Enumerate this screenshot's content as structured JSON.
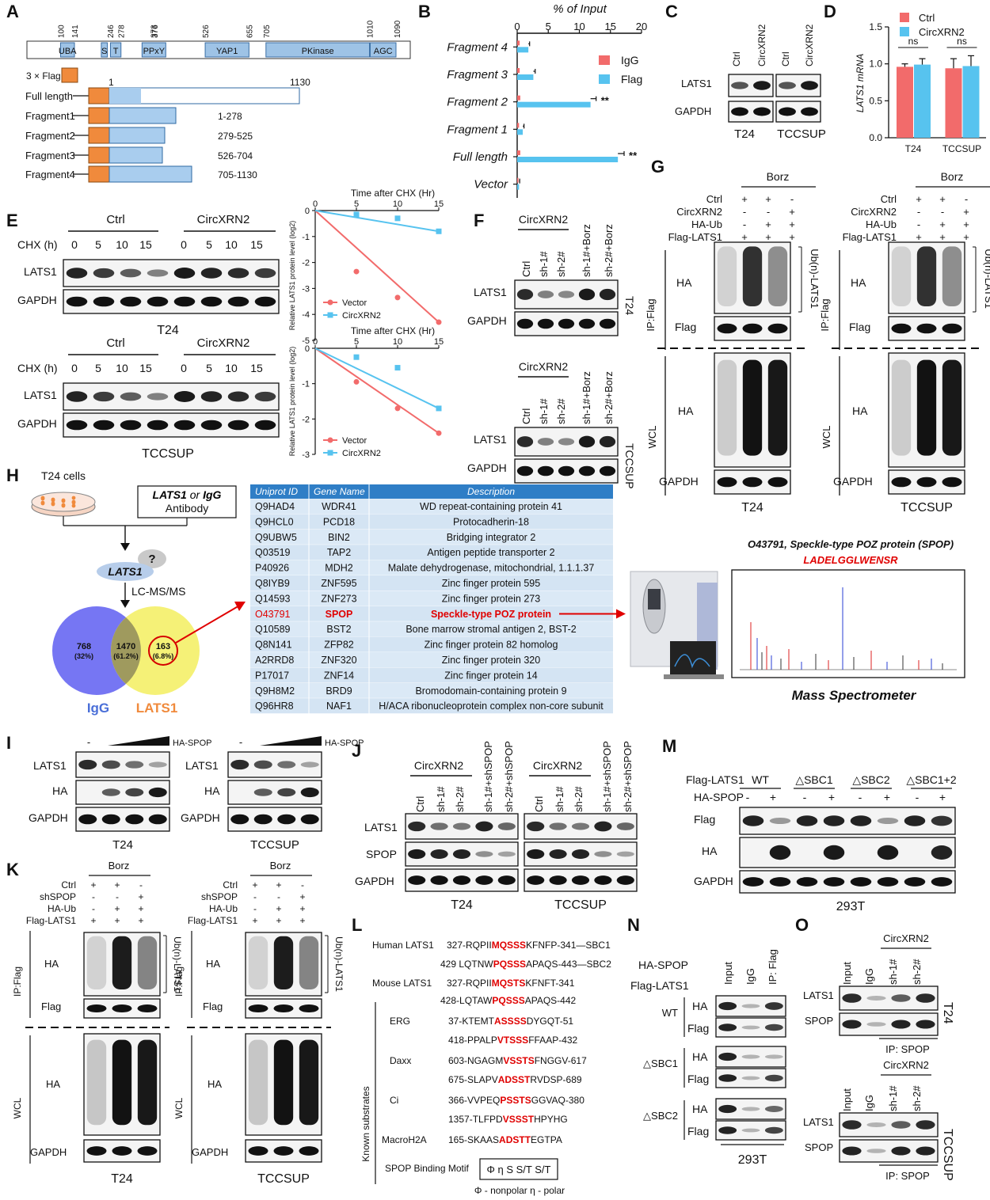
{
  "panels": {
    "A": {
      "label": "A",
      "positions": [
        "100",
        "141",
        "246",
        "278",
        "373",
        "376",
        "526",
        "655",
        "705",
        "1010",
        "1090"
      ],
      "domains": [
        "UBA",
        "S",
        "T",
        "PPxY",
        "YAP1",
        "PKinase",
        "AGC"
      ],
      "flag": "3 × Flag",
      "start": "1",
      "end": "1130",
      "constructs": [
        {
          "name": "Full length",
          "range": ""
        },
        {
          "name": "Fragment1",
          "range": "1-278"
        },
        {
          "name": "Fragment2",
          "range": "279-525"
        },
        {
          "name": "Fragment3",
          "range": "526-704"
        },
        {
          "name": "Fragment4",
          "range": "705-1130"
        }
      ]
    },
    "B": {
      "label": "B",
      "sig": "**"
    },
    "C": {
      "label": "C",
      "lanes": [
        "Ctrl",
        "CircXRN2",
        "Ctrl",
        "CircXRN2"
      ],
      "rows": [
        "LATS1",
        "GAPDH"
      ],
      "cells": [
        "T24",
        "TCCSUP"
      ]
    },
    "D": {
      "label": "D"
    },
    "E": {
      "label": "E",
      "ctrl": "Ctrl",
      "circ": "CircXRN2",
      "chx": "CHX (h)",
      "times": [
        "0",
        "5",
        "10",
        "15",
        "0",
        "5",
        "10",
        "15"
      ],
      "rows": [
        "LATS1",
        "GAPDH"
      ],
      "cells": [
        "T24",
        "TCCSUP"
      ]
    },
    "F": {
      "label": "F",
      "group": "CircXRN2",
      "lanes": [
        "Ctrl",
        "sh-1#",
        "sh-2#",
        "sh-1#+Borz",
        "sh-2#+Borz"
      ],
      "rows": [
        "LATS1",
        "GAPDH"
      ],
      "cells": [
        "T24",
        "TCCSUP"
      ]
    },
    "G": {
      "label": "G",
      "borz": "Borz",
      "conds": [
        "Ctrl",
        "CircXRN2",
        "HA-Ub",
        "Flag-LATS1"
      ],
      "signs": [
        [
          "+",
          "+",
          "-"
        ],
        [
          "-",
          "-",
          "+"
        ],
        [
          "-",
          "+",
          "+"
        ],
        [
          "+",
          "+",
          "+"
        ]
      ],
      "ip": "IP:Flag",
      "wcl": "WCL",
      "ub": "Ub(n)-LATS1",
      "rows": [
        "HA",
        "Flag",
        "HA",
        "GAPDH"
      ],
      "cells": [
        "T24",
        "TCCSUP"
      ]
    },
    "H": {
      "label": "H",
      "cells": "T24 cells",
      "antibody_1": "LATS1",
      "antibody_or": " or ",
      "antibody_2": "IgG",
      "antibody_3": "Antibody",
      "q": "?",
      "lats1": "LATS1",
      "lcms": "LC-MS/MS",
      "venn": {
        "left": "768",
        "left_pct": "(32%)",
        "mid": "1470",
        "mid_pct": "(61.2%)",
        "right": "163",
        "right_pct": "(6.8%)",
        "igg": "IgG",
        "lats": "LATS1"
      },
      "table_headers": [
        "Uniprot ID",
        "Gene Name",
        "Description"
      ],
      "table_rows": [
        [
          "Q9HAD4",
          "WDR41",
          "WD repeat-containing protein 41"
        ],
        [
          "Q9HCL0",
          "PCD18",
          "Protocadherin-18"
        ],
        [
          "Q9UBW5",
          "BIN2",
          "Bridging integrator 2"
        ],
        [
          "Q03519",
          "TAP2",
          "Antigen peptide transporter 2"
        ],
        [
          "P40926",
          "MDH2",
          "Malate dehydrogenase, mitochondrial, 1.1.1.37"
        ],
        [
          "Q8IYB9",
          "ZNF595",
          "Zinc finger protein 595"
        ],
        [
          "Q14593",
          "ZNF273",
          "Zinc finger protein 273"
        ],
        [
          "O43791",
          "SPOP",
          "Speckle-type POZ protein"
        ],
        [
          "Q10589",
          "BST2",
          "Bone marrow stromal antigen 2, BST-2"
        ],
        [
          "Q8N141",
          "ZFP82",
          "Zinc finger protein 82 homolog"
        ],
        [
          "A2RRD8",
          "ZNF320",
          "Zinc finger protein 320"
        ],
        [
          "P17017",
          "ZNF14",
          "Zinc finger protein 14"
        ],
        [
          "Q9H8M2",
          "BRD9",
          "Bromodomain-containing protein 9"
        ],
        [
          "Q96HR8",
          "NAF1",
          "H/ACA ribonucleoprotein complex non-core subunit"
        ]
      ],
      "ms_title": "O43791, Speckle-type POZ protein (SPOP)",
      "peptide": "LADELGGLWENSR",
      "ms_caption": "Mass Spectrometer"
    },
    "I": {
      "label": "I",
      "minus": "-",
      "ha_spop": "HA-SPOP",
      "rows": [
        "LATS1",
        "HA",
        "GAPDH"
      ],
      "cells": [
        "T24",
        "TCCSUP"
      ]
    },
    "J": {
      "label": "J",
      "group": "CircXRN2",
      "lanes": [
        "Ctrl",
        "sh-1#",
        "sh-2#",
        "sh-1#+shSPOP",
        "sh-2#+shSPOP"
      ],
      "rows": [
        "LATS1",
        "SPOP",
        "GAPDH"
      ],
      "cells": [
        "T24",
        "TCCSUP"
      ]
    },
    "K": {
      "label": "K",
      "borz": "Borz",
      "conds": [
        "Ctrl",
        "shSPOP",
        "HA-Ub",
        "Flag-LATS1"
      ],
      "signs": [
        [
          "+",
          "+",
          "-"
        ],
        [
          "-",
          "-",
          "+"
        ],
        [
          "-",
          "+",
          "+"
        ],
        [
          "+",
          "+",
          "+"
        ]
      ],
      "ip": "IP:Flag",
      "wcl": "WCL",
      "ub": "Ub(n)-LATS1",
      "rows": [
        "HA",
        "Flag",
        "HA",
        "GAPDH"
      ],
      "cells": [
        "T24",
        "TCCSUP"
      ]
    },
    "L": {
      "label": "L",
      "human": "Human LATS1",
      "mouse": "Mouse LATS1",
      "known": "Known substrates",
      "seqs": [
        {
          "name": "",
          "pre": "327-RQPII",
          "motif": "MQSSS",
          "post": "KFNFP-341—SBC1"
        },
        {
          "name": "",
          "pre": "429 LQTNW",
          "motif": "PQSSS",
          "post": "APAQS-443—SBC2"
        },
        {
          "name": "",
          "pre": "327-RQPII",
          "motif": "MQSTS",
          "post": "KFNFT-341"
        },
        {
          "name": "",
          "pre": "428-LQTAW",
          "motif": "PQSSS",
          "post": "APAQS-442"
        },
        {
          "name": "ERG",
          "pre": "37-KTEMT",
          "motif": "ASSSS",
          "post": "DYGQT-51"
        },
        {
          "name": "",
          "pre": "418-PPALP",
          "motif": "VTSSS",
          "post": "FFAAP-432"
        },
        {
          "name": "Daxx",
          "pre": "603-NGAGM",
          "motif": "VSSTS",
          "post": "FNGGV-617"
        },
        {
          "name": "",
          "pre": "675-SLAPV",
          "motif": "ADSST",
          "post": "RVDSP-689"
        },
        {
          "name": "Ci",
          "pre": "366-VVPEQ",
          "motif": "PSSTS",
          "post": "GGVAQ-380"
        },
        {
          "name": "",
          "pre": "1357-TLFPD",
          "motif": "VSSST",
          "post": "HPYHG"
        },
        {
          "name": "MacroH2A",
          "pre": "165-SKAAS",
          "motif": "ADSTT",
          "post": "EGTPA"
        }
      ],
      "motif_label": "SPOP Binding Motif",
      "motif": "Φ η S S/T S/T",
      "legend": "Φ - nonpolar   η - polar"
    },
    "M": {
      "label": "M",
      "flag_lats": "Flag-LATS1",
      "ha_spop": "HA-SPOP",
      "groups": [
        "WT",
        "△SBC1",
        "△SBC2",
        "△SBC1+2"
      ],
      "signs": [
        "-",
        "+",
        "-",
        "+",
        "-",
        "+",
        "-",
        "+"
      ],
      "rows": [
        "Flag",
        "HA",
        "GAPDH"
      ],
      "cell": "293T"
    },
    "N": {
      "label": "N",
      "ha_spop": "HA-SPOP",
      "flag_lats": "Flag-LATS1",
      "lanes": [
        "Input",
        "IgG",
        "IP: Flag"
      ],
      "groups": [
        "WT",
        "△SBC1",
        "△SBC2"
      ],
      "rows": [
        "HA",
        "Flag"
      ],
      "cell": "293T"
    },
    "O": {
      "label": "O",
      "group": "CircXRN2",
      "lanes": [
        "Input",
        "IgG",
        "sh-1#",
        "sh-2#"
      ],
      "rows": [
        "LATS1",
        "SPOP"
      ],
      "ip": "IP: SPOP",
      "cells": [
        "T24",
        "TCCSUP"
      ]
    }
  },
  "chart_data": [
    {
      "type": "bar",
      "orientation": "horizontal",
      "title": "% of Input",
      "categories": [
        "Fragment 4",
        "Fragment 3",
        "Fragment 2",
        "Fragment 1",
        "Full length",
        "Vector"
      ],
      "series": [
        {
          "name": "IgG",
          "color": "#f26b6b",
          "values": [
            0.4,
            0.4,
            0.5,
            0.3,
            0.5,
            0.2
          ]
        },
        {
          "name": "Flag",
          "color": "#57c3ef",
          "values": [
            1.8,
            2.6,
            11.8,
            0.9,
            16.2,
            0.3
          ]
        }
      ],
      "errors": [
        0.2,
        0.3,
        0.9,
        0.2,
        1.0,
        0.1
      ],
      "xlim": [
        0,
        20
      ],
      "xticks": [
        "0",
        "5",
        "10",
        "15",
        "20"
      ],
      "annotations": [
        "**",
        "**"
      ]
    },
    {
      "type": "bar",
      "categories": [
        "T24",
        "TCCSUP"
      ],
      "series": [
        {
          "name": "Ctrl",
          "color": "#f26b6b",
          "values": [
            0.96,
            0.94
          ]
        },
        {
          "name": "CircXRN2",
          "color": "#57c3ef",
          "values": [
            0.99,
            0.97
          ]
        }
      ],
      "errors": [
        [
          0.04,
          0.13
        ],
        [
          0.08,
          0.14
        ]
      ],
      "ylabel": "LATS1 mRNA",
      "ylim": [
        0,
        1.5
      ],
      "yticks": [
        "0.0",
        "0.5",
        "1.0",
        "1.5"
      ],
      "annotations": [
        "ns",
        "ns"
      ]
    },
    {
      "type": "line",
      "title": "Time after CHX (Hr)",
      "ylabel": "Relative LATS1 protein level (log2)",
      "x": [
        0,
        5,
        10,
        15
      ],
      "xticks": [
        "0",
        "5",
        "10",
        "15"
      ],
      "yticks": [
        "0",
        "-1",
        "-2",
        "-3",
        "-4",
        "-5"
      ],
      "ylim": [
        -5,
        0
      ],
      "series": [
        {
          "name": "Vector",
          "color": "#f26b6b",
          "values": [
            0,
            -2.35,
            -3.35,
            -4.3
          ]
        },
        {
          "name": "CircXRN2",
          "color": "#57c3ef",
          "values": [
            0,
            -0.15,
            -0.3,
            -0.8
          ]
        }
      ]
    },
    {
      "type": "line",
      "title": "Time after CHX (Hr)",
      "ylabel": "Relative LATS1 protein level (log2)",
      "x": [
        0,
        5,
        10,
        15
      ],
      "xticks": [
        "0",
        "5",
        "10",
        "15"
      ],
      "yticks": [
        "0",
        "-1",
        "-2",
        "-3"
      ],
      "ylim": [
        -3,
        0
      ],
      "series": [
        {
          "name": "Vector",
          "color": "#f26b6b",
          "values": [
            0,
            -0.95,
            -1.7,
            -2.4
          ]
        },
        {
          "name": "CircXRN2",
          "color": "#57c3ef",
          "values": [
            0,
            -0.25,
            -0.55,
            -1.7
          ]
        }
      ]
    }
  ]
}
